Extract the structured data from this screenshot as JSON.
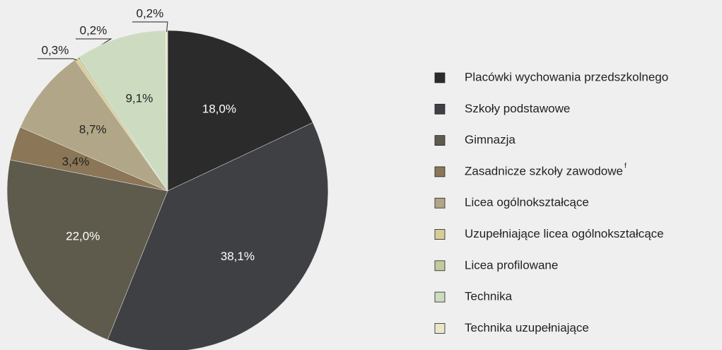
{
  "chart_data": {
    "type": "pie",
    "categories": [
      "Placówki wychowania przedszkolnego",
      "Szkoły podstawowe",
      "Gimnazja",
      "Zasadnicze szkoły zawodowe",
      "Licea ogólnokształcące",
      "Uzupełniające licea ogólnokształcące",
      "Licea profilowane",
      "Technika",
      "Technika uzupełniające"
    ],
    "legend_notes": [
      null,
      null,
      null,
      "f",
      null,
      null,
      null,
      null,
      null
    ],
    "values": [
      18.0,
      38.1,
      22.0,
      3.4,
      8.7,
      0.3,
      0.2,
      9.1,
      0.2
    ],
    "value_labels": [
      "18,0%",
      "38,1%",
      "22,0%",
      "3,4%",
      "8,7%",
      "0,3%",
      "0,2%",
      "9,1%",
      "0,2%"
    ],
    "colors": [
      "#2b2b2b",
      "#3e4043",
      "#5e5b4d",
      "#8b7657",
      "#b1a788",
      "#d8cd98",
      "#c4ca9f",
      "#cddcc1",
      "#e9e7cb"
    ],
    "legend": "right"
  }
}
